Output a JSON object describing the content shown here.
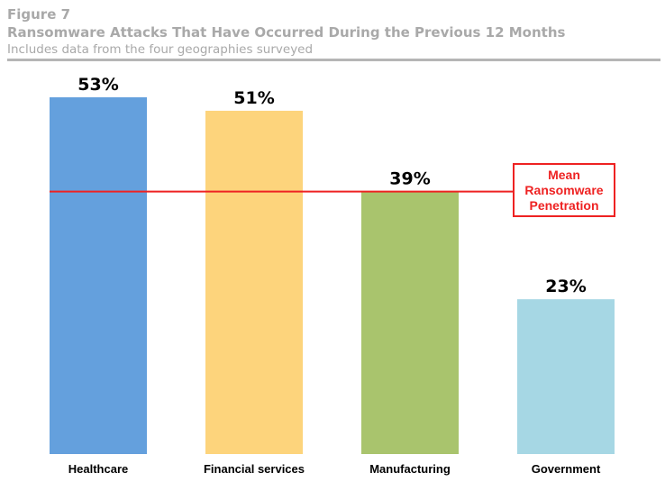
{
  "header": {
    "figure_label": "Figure 7",
    "title": "Ransomware Attacks That Have Occurred During the Previous 12 Months",
    "subtitle": "Includes data from the four geographies surveyed"
  },
  "colors": {
    "header_text": "#a9a9a9",
    "rule": "#b5b5b5",
    "mean_line": "#ee2222"
  },
  "chart_data": {
    "type": "bar",
    "categories": [
      "Healthcare",
      "Financial services",
      "Manufacturing",
      "Government"
    ],
    "values": [
      53,
      51,
      39,
      23
    ],
    "value_labels": [
      "53%",
      "51%",
      "39%",
      "23%"
    ],
    "colors": [
      "#64a0dd",
      "#fdd47c",
      "#a9c46d",
      "#a6d7e4"
    ],
    "ylim": [
      0,
      53
    ],
    "grid": false,
    "reference_line": {
      "value": 39,
      "label": "Mean Ransomware Penetration",
      "color": "#ee2222"
    }
  }
}
